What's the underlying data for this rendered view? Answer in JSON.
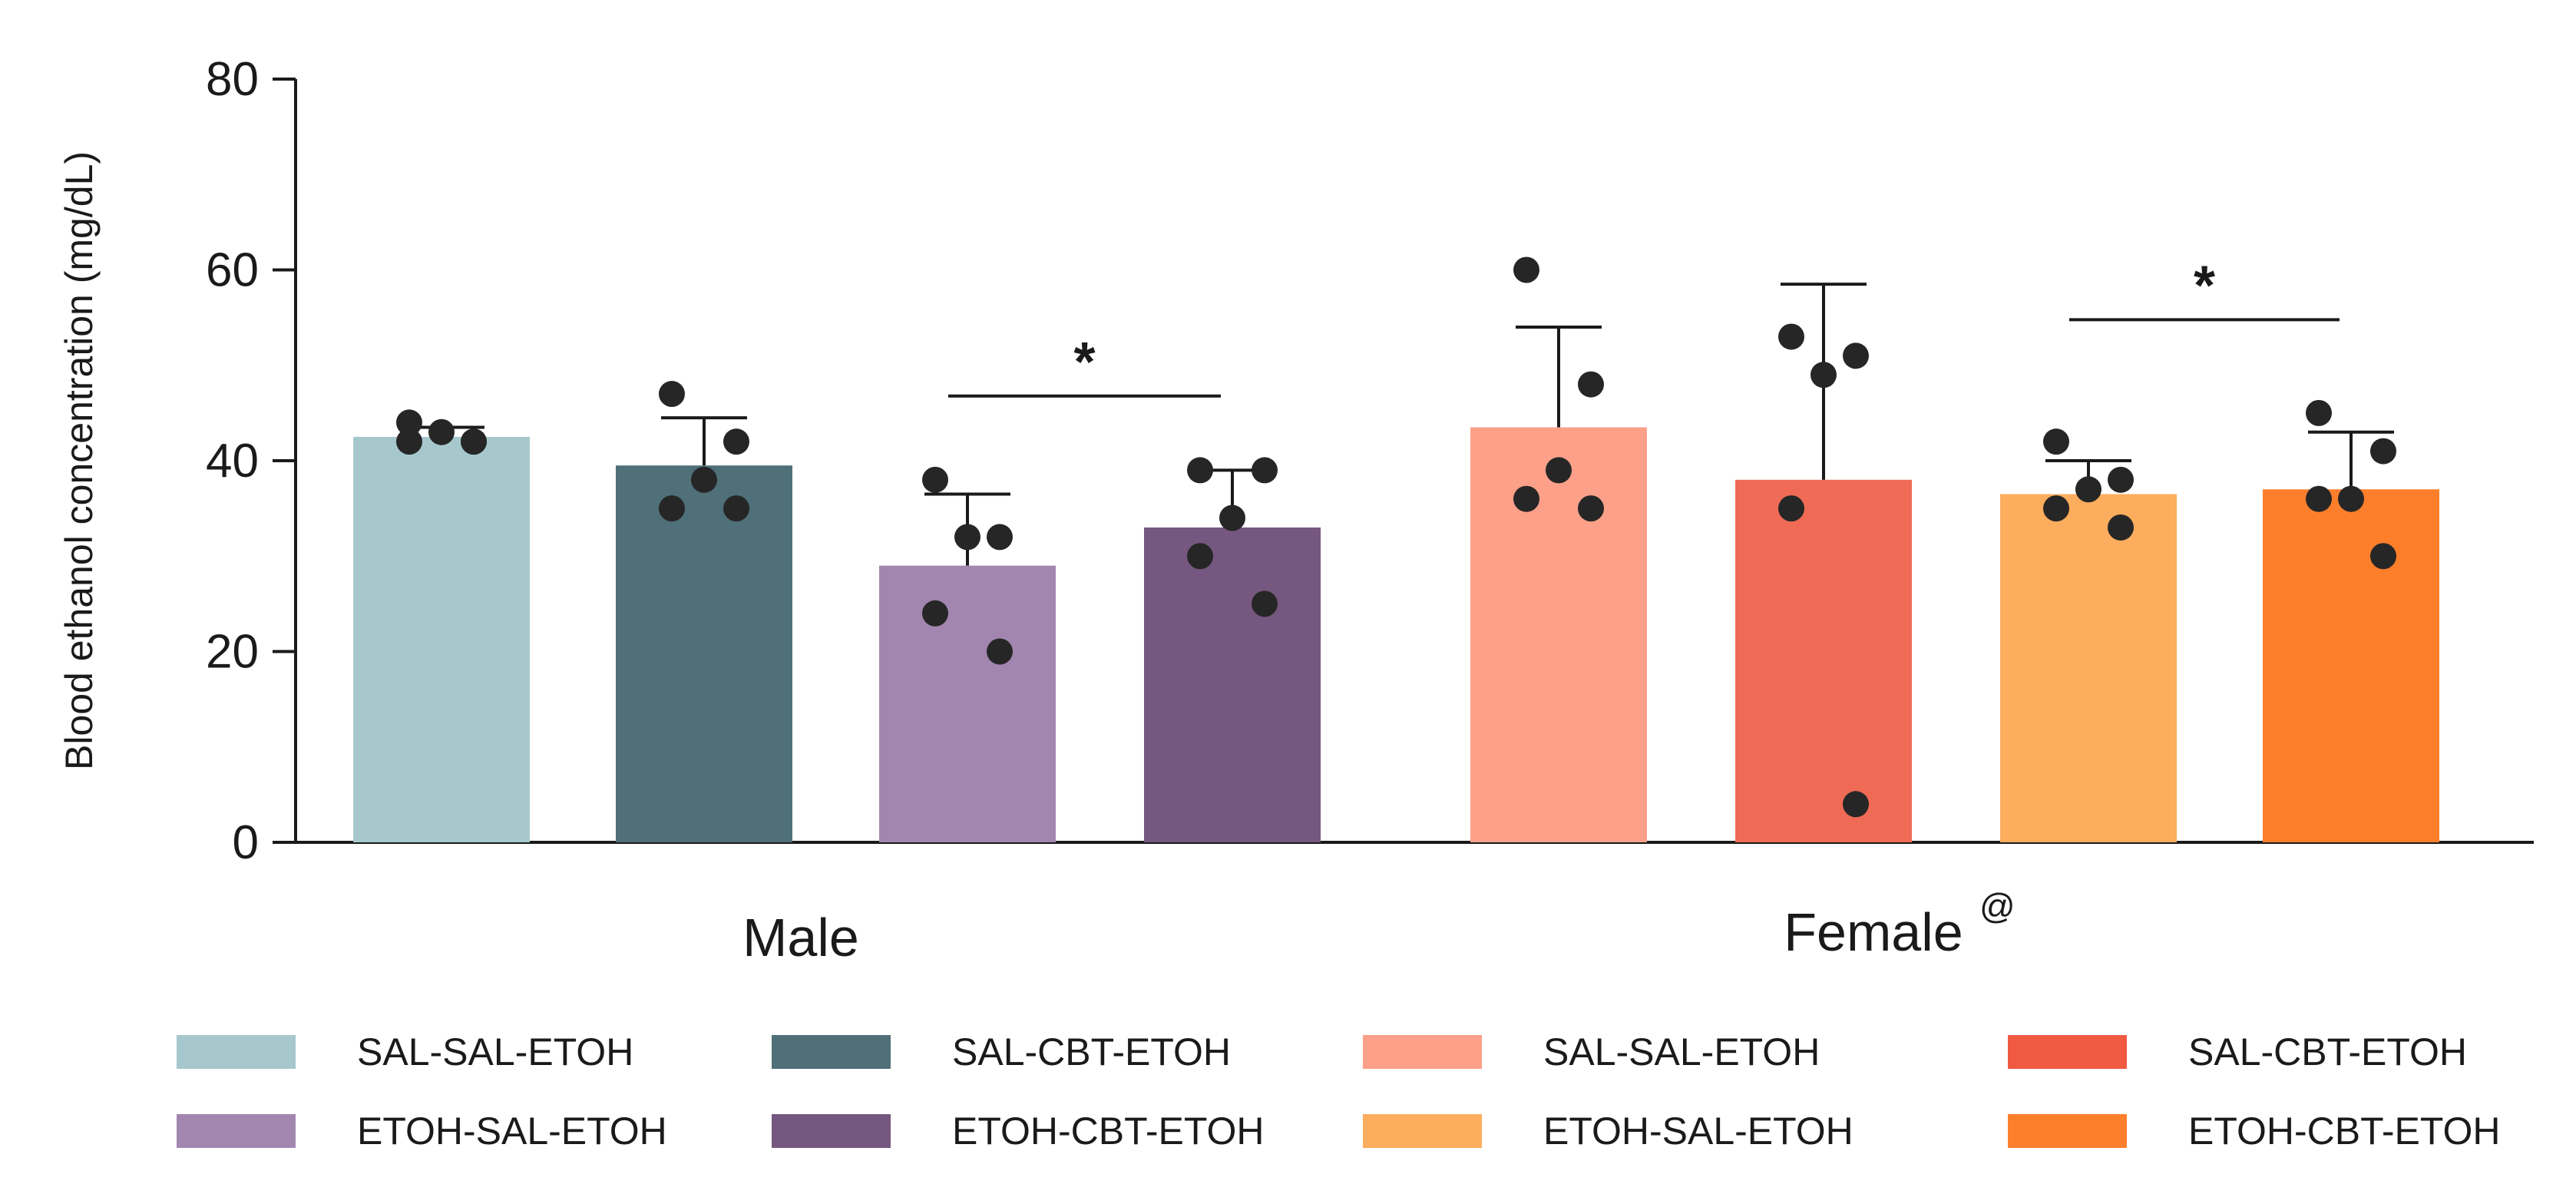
{
  "chart_data": {
    "type": "bar",
    "title": "",
    "ylabel": "Blood ethanol concentration (mg/dL)",
    "xlabel": "",
    "ylim": [
      0,
      80
    ],
    "yticks": [
      "0",
      "20",
      "40",
      "60",
      "80"
    ],
    "groups": [
      {
        "label": "Male",
        "marker": "",
        "bars": [
          {
            "name": "SAL-SAL-ETOH",
            "color": "#a6c8cc",
            "mean": 42.5,
            "sd": 1.0,
            "points": [
              44,
              42,
              43,
              42,
              42
            ]
          },
          {
            "name": "SAL-CBT-ETOH",
            "color": "#4f6f79",
            "mean": 39.5,
            "sd": 5.0,
            "points": [
              47,
              42,
              38,
              35,
              35
            ]
          },
          {
            "name": "ETOH-SAL-ETOH",
            "color": "#a286b0",
            "mean": 29.0,
            "sd": 7.5,
            "points": [
              38,
              32,
              32,
              24,
              20
            ]
          },
          {
            "name": "ETOH-CBT-ETOH",
            "color": "#76577f",
            "mean": 33.0,
            "sd": 6.0,
            "points": [
              39,
              39,
              34,
              30,
              25
            ]
          }
        ]
      },
      {
        "label": "Female",
        "marker": "@",
        "bars": [
          {
            "name": "SAL-SAL-ETOH",
            "color": "#fca089",
            "mean": 43.5,
            "sd": 10.5,
            "points": [
              60,
              48,
              39,
              36,
              35
            ]
          },
          {
            "name": "SAL-CBT-ETOH",
            "color": "#ef6b56",
            "mean": 38.0,
            "sd": 20.5,
            "points": [
              53,
              51,
              49,
              35,
              4
            ]
          },
          {
            "name": "ETOH-SAL-ETOH",
            "color": "#fcad5e",
            "mean": 36.5,
            "sd": 3.5,
            "points": [
              42,
              38,
              37,
              35,
              33
            ]
          },
          {
            "name": "ETOH-CBT-ETOH",
            "color": "#fd7f2b",
            "mean": 37.0,
            "sd": 6.0,
            "points": [
              45,
              41,
              36,
              36,
              30
            ]
          }
        ]
      }
    ],
    "annotations": [
      {
        "text": "*",
        "from_bar": [
          0,
          2
        ],
        "to_bar": [
          0,
          3
        ],
        "y": 50
      },
      {
        "text": "*",
        "from_bar": [
          1,
          2
        ],
        "to_bar": [
          1,
          3
        ],
        "y": 58
      }
    ],
    "legend": [
      {
        "label": "SAL-SAL-ETOH",
        "color": "#a6c8cc"
      },
      {
        "label": "SAL-CBT-ETOH",
        "color": "#4f6f79"
      },
      {
        "label": "SAL-SAL-ETOH",
        "color": "#fca089"
      },
      {
        "label": "SAL-CBT-ETOH",
        "color": "#ef5a41"
      },
      {
        "label": "ETOH-SAL-ETOH",
        "color": "#a286b0"
      },
      {
        "label": "ETOH-CBT-ETOH",
        "color": "#76577f"
      },
      {
        "label": "ETOH-SAL-ETOH",
        "color": "#fcad5e"
      },
      {
        "label": "ETOH-CBT-ETOH",
        "color": "#fd7f2b"
      }
    ],
    "legend_position": "bottom"
  }
}
